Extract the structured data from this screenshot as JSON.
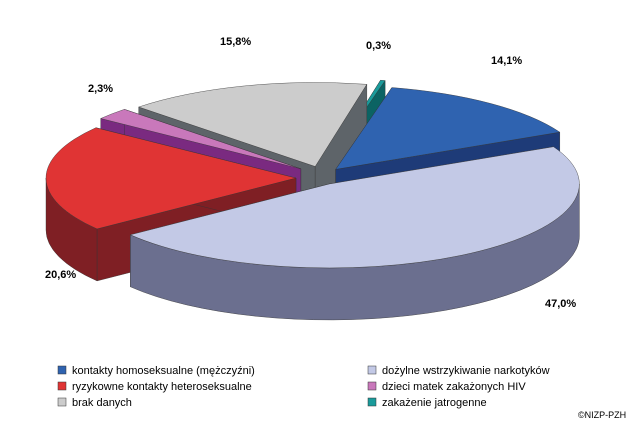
{
  "chart_data": {
    "type": "pie",
    "style": "3d-exploded",
    "categories": [
      "kontakty homoseksualne (mężczyźni)",
      "dożylne wstrzykiwanie narkotyków",
      "ryzykowne kontakty heteroseksualne",
      "dzieci matek zakażonych HIV",
      "brak danych",
      "zakażenie jatrogenne"
    ],
    "values": [
      14.1,
      47.0,
      20.6,
      2.3,
      15.8,
      0.3
    ],
    "value_labels": [
      "14,1%",
      "47,0%",
      "20,6%",
      "2,3%",
      "15,8%",
      "0,3%"
    ],
    "colors": [
      "#2f63b0",
      "#c3c9e6",
      "#e03434",
      "#c978bb",
      "#cccccc",
      "#1a9b9b"
    ],
    "side_colors": [
      "#1e3b78",
      "#6b6f8f",
      "#7f1f24",
      "#7a2a80",
      "#5e6469",
      "#0b6363"
    ],
    "legend_position": "bottom",
    "credit": "©NIZP-PZH"
  }
}
